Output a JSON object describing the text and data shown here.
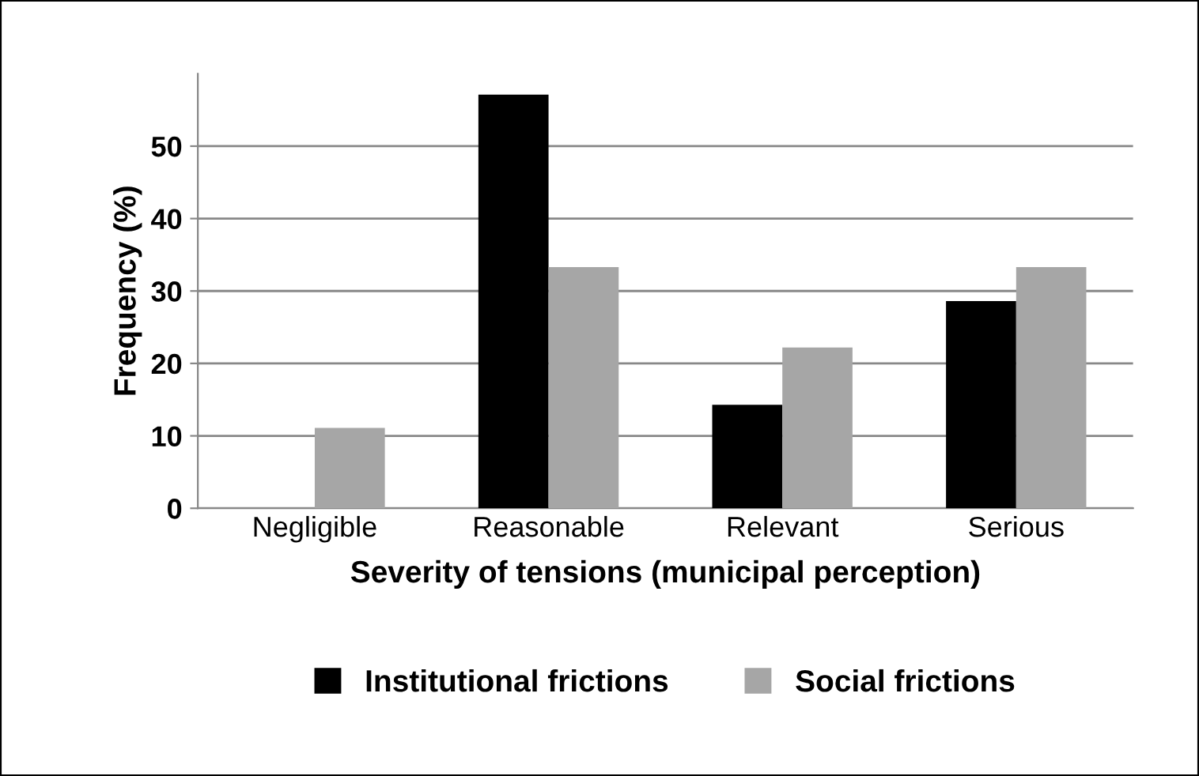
{
  "chart_data": {
    "type": "bar",
    "xlabel": "Severity of tensions (municipal perception)",
    "ylabel": "Frequency (%)",
    "categories": [
      "Negligible",
      "Reasonable",
      "Relevant",
      "Serious"
    ],
    "series": [
      {
        "name": "Institutional frictions",
        "color": "#000000",
        "values": [
          0,
          57.1,
          14.3,
          28.6
        ]
      },
      {
        "name": "Social frictions",
        "color": "#a6a6a6",
        "values": [
          11.1,
          33.3,
          22.2,
          33.3
        ]
      }
    ],
    "ylim": [
      0,
      60
    ],
    "yticks": [
      0,
      10,
      20,
      30,
      40,
      50
    ],
    "grid": "y",
    "legend": "bottom"
  }
}
